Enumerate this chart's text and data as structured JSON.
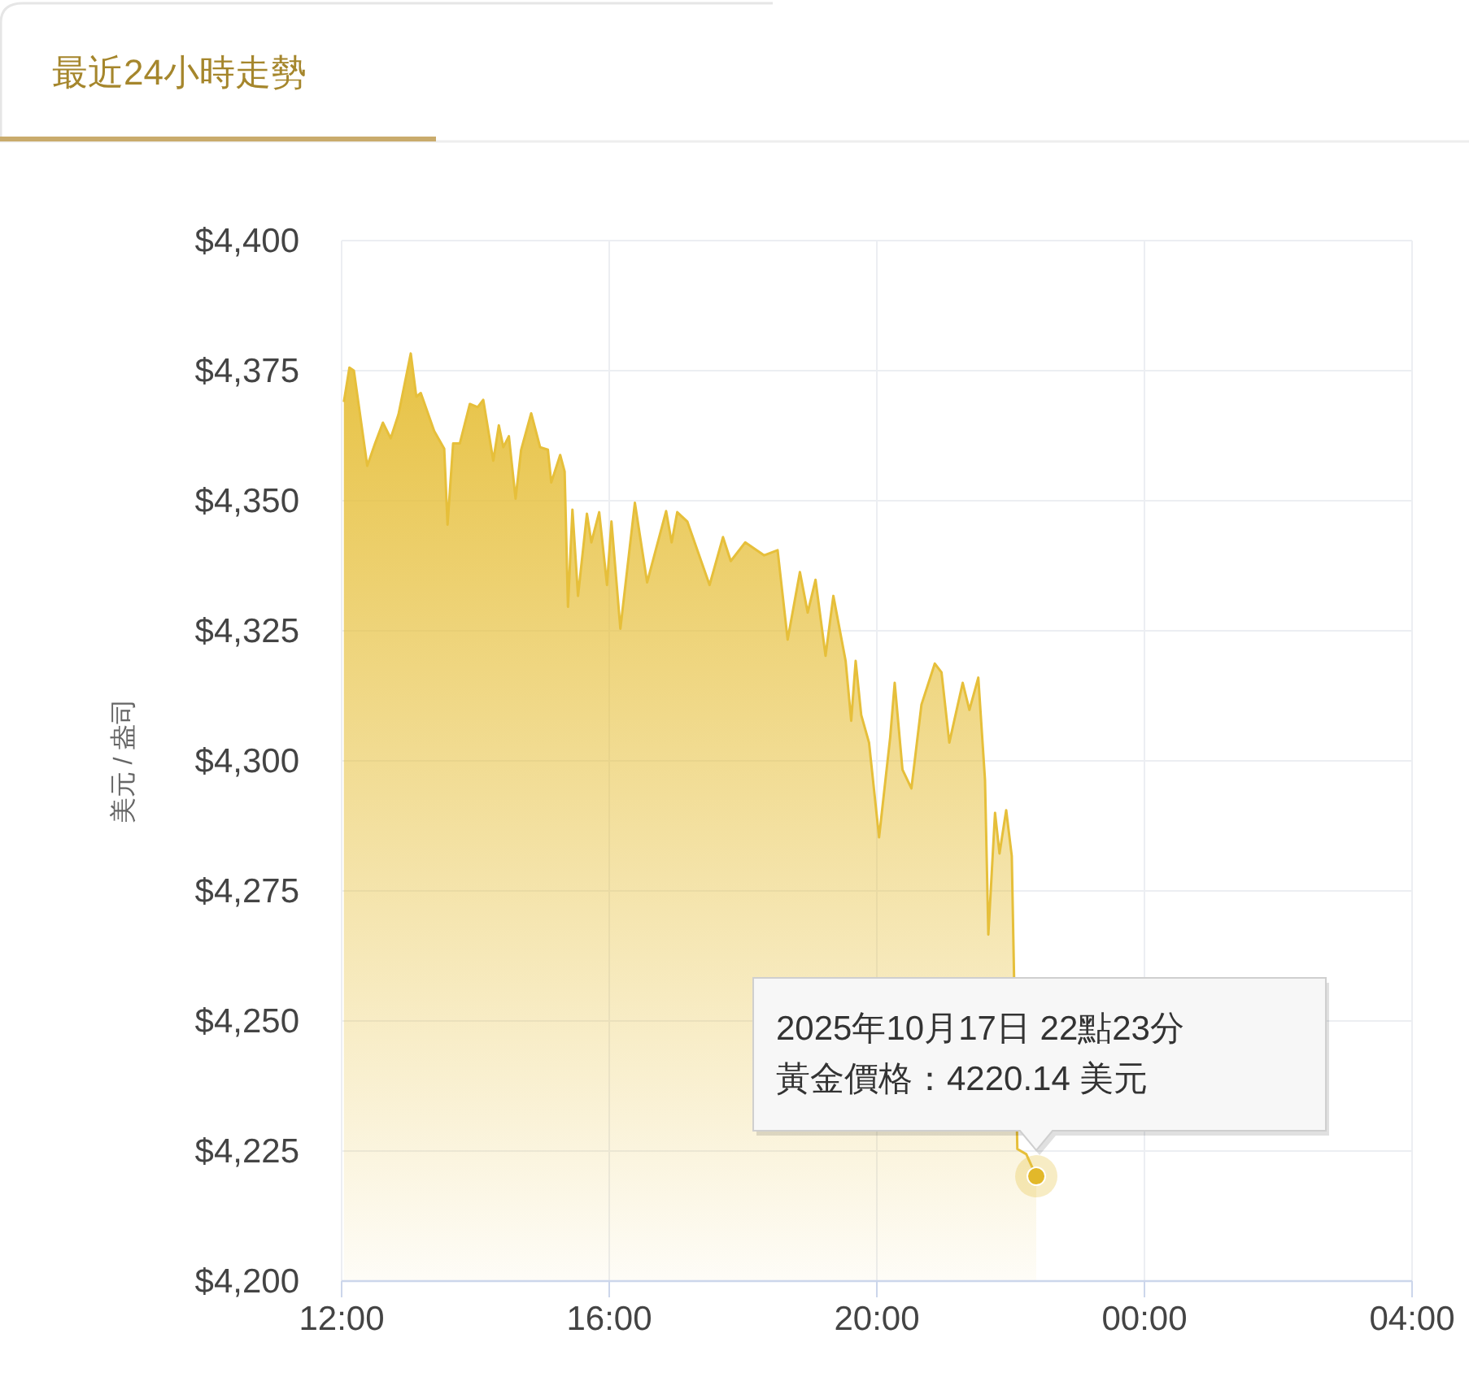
{
  "chart_data": {
    "type": "area",
    "title": "最近24小時走勢",
    "ylabel": "美元 / 盎司",
    "x": [
      "2025-10-17T12:02",
      "2025-10-17T12:07",
      "2025-10-17T12:11",
      "2025-10-17T12:23",
      "2025-10-17T12:30",
      "2025-10-17T12:37",
      "2025-10-17T12:44",
      "2025-10-17T12:51",
      "2025-10-17T13:02",
      "2025-10-17T13:07",
      "2025-10-17T13:11",
      "2025-10-17T13:23",
      "2025-10-17T13:32",
      "2025-10-17T13:35",
      "2025-10-17T13:40",
      "2025-10-17T13:46",
      "2025-10-17T13:55",
      "2025-10-17T14:02",
      "2025-10-17T14:07",
      "2025-10-17T14:16",
      "2025-10-17T14:21",
      "2025-10-17T14:25",
      "2025-10-17T14:30",
      "2025-10-17T14:36",
      "2025-10-17T14:41",
      "2025-10-17T14:50",
      "2025-10-17T14:58",
      "2025-10-17T15:05",
      "2025-10-17T15:08",
      "2025-10-17T15:16",
      "2025-10-17T15:20",
      "2025-10-17T15:23",
      "2025-10-17T15:27",
      "2025-10-17T15:32",
      "2025-10-17T15:40",
      "2025-10-17T15:44",
      "2025-10-17T15:51",
      "2025-10-17T15:58",
      "2025-10-17T16:02",
      "2025-10-17T16:10",
      "2025-10-17T16:23",
      "2025-10-17T16:34",
      "2025-10-17T16:51",
      "2025-10-17T16:56",
      "2025-10-17T17:01",
      "2025-10-17T17:10",
      "2025-10-17T17:30",
      "2025-10-17T17:42",
      "2025-10-17T17:49",
      "2025-10-17T18:02",
      "2025-10-17T18:19",
      "2025-10-17T18:31",
      "2025-10-17T18:40",
      "2025-10-17T18:51",
      "2025-10-17T18:58",
      "2025-10-17T19:05",
      "2025-10-17T19:14",
      "2025-10-17T19:21",
      "2025-10-17T19:32",
      "2025-10-17T19:37",
      "2025-10-17T19:41",
      "2025-10-17T19:46",
      "2025-10-17T19:53",
      "2025-10-17T20:02",
      "2025-10-17T20:12",
      "2025-10-17T20:16",
      "2025-10-17T20:23",
      "2025-10-17T20:31",
      "2025-10-17T20:40",
      "2025-10-17T20:52",
      "2025-10-17T20:58",
      "2025-10-17T21:05",
      "2025-10-17T21:17",
      "2025-10-17T21:23",
      "2025-10-17T21:31",
      "2025-10-17T21:37",
      "2025-10-17T21:40",
      "2025-10-17T21:46",
      "2025-10-17T21:50",
      "2025-10-17T21:56",
      "2025-10-17T22:01",
      "2025-10-17T22:06",
      "2025-10-17T22:14",
      "2025-10-17T22:23"
    ],
    "series": [
      {
        "color": "#e6bf3a",
        "values": [
          4369,
          4375.6,
          4375,
          4356.7,
          4361,
          4365,
          4362,
          4366.6,
          4378.3,
          4370,
          4370.7,
          4363.4,
          4360,
          4345.4,
          4361,
          4361,
          4368.6,
          4368,
          4369.4,
          4357.7,
          4364.5,
          4360.3,
          4362.4,
          4350.4,
          4359.8,
          4366.8,
          4360.3,
          4359.8,
          4353.5,
          4358.8,
          4355.6,
          4329.6,
          4348.3,
          4331.7,
          4347.5,
          4342,
          4347.8,
          4333.8,
          4346,
          4325.4,
          4349.6,
          4334.3,
          4348,
          4342,
          4347.8,
          4346,
          4333.8,
          4343,
          4338.4,
          4342,
          4339.5,
          4340.5,
          4323.3,
          4336.3,
          4328.5,
          4334.8,
          4320.2,
          4331.7,
          4319.2,
          4307.7,
          4319.2,
          4308.8,
          4303.5,
          4285.3,
          4304.6,
          4315,
          4298.3,
          4294.7,
          4310.8,
          4318.7,
          4317,
          4303.5,
          4315,
          4309.8,
          4316,
          4296.3,
          4266.6,
          4290,
          4282.2,
          4290.5,
          4281.7,
          4225.4,
          4224.4,
          4220.14
        ]
      }
    ],
    "xlim": [
      "2025-10-17T12:00",
      "2025-10-18T04:00"
    ],
    "xticks": [
      {
        "value": "2025-10-17T12:00",
        "label": "12:00"
      },
      {
        "value": "2025-10-17T16:00",
        "label": "16:00"
      },
      {
        "value": "2025-10-17T20:00",
        "label": "20:00"
      },
      {
        "value": "2025-10-18T00:00",
        "label": "00:00"
      },
      {
        "value": "2025-10-18T04:00",
        "label": "04:00"
      }
    ],
    "ylim": [
      4200,
      4400
    ],
    "yticks": [
      {
        "value": 4200,
        "label": "$4,200"
      },
      {
        "value": 4225,
        "label": "$4,225"
      },
      {
        "value": 4250,
        "label": "$4,250"
      },
      {
        "value": 4275,
        "label": "$4,275"
      },
      {
        "value": 4300,
        "label": "$4,300"
      },
      {
        "value": 4325,
        "label": "$4,325"
      },
      {
        "value": 4350,
        "label": "$4,350"
      },
      {
        "value": 4375,
        "label": "$4,375"
      },
      {
        "value": 4400,
        "label": "$4,400"
      }
    ],
    "grid": true,
    "annotations": [
      "2025年10月17日 22點23分",
      {
        "text": "黃金價格：4220.14 美元",
        "x": "2025-10-17T22:23",
        "y": 4220.14
      }
    ]
  }
}
